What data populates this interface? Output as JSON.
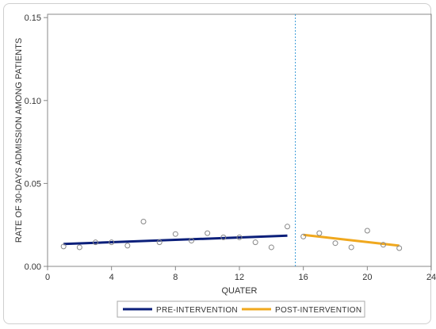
{
  "chart_data": {
    "type": "line",
    "xlabel": "QUATER",
    "ylabel": "RATE OF 30-DAYS ADMISSION AMONG PATIENTS",
    "xlim": [
      0,
      24
    ],
    "ylim": [
      0,
      0.152
    ],
    "x_ticks": [
      0,
      4,
      8,
      12,
      16,
      20,
      24
    ],
    "x_tick_labels": [
      "0",
      "4",
      "8",
      "12",
      "16",
      "20",
      "24"
    ],
    "y_ticks": [
      0.0,
      0.05,
      0.1,
      0.15
    ],
    "y_tick_labels": [
      "0.00",
      "0.05",
      "0.10",
      "0.15"
    ],
    "grid": false,
    "legend_position": "bottom",
    "intervention_x": 15.5,
    "observed": {
      "x": [
        1,
        2,
        3,
        4,
        5,
        6,
        7,
        8,
        9,
        10,
        11,
        12,
        13,
        14,
        15,
        16,
        17,
        18,
        19,
        20,
        21,
        22
      ],
      "y": [
        0.012,
        0.0115,
        0.0145,
        0.0145,
        0.0125,
        0.027,
        0.0145,
        0.0195,
        0.0155,
        0.02,
        0.0175,
        0.0175,
        0.0145,
        0.0115,
        0.024,
        0.018,
        0.02,
        0.014,
        0.0115,
        0.0215,
        0.013,
        0.011
      ],
      "color": "#888888"
    },
    "series": [
      {
        "name": "PRE-INTERVENTION",
        "x": [
          1,
          15
        ],
        "y": [
          0.0135,
          0.0185
        ],
        "color": "#0b1f7a"
      },
      {
        "name": "POST-INTERVENTION",
        "x": [
          16,
          22
        ],
        "y": [
          0.019,
          0.0125
        ],
        "color": "#f0a81e"
      }
    ]
  }
}
